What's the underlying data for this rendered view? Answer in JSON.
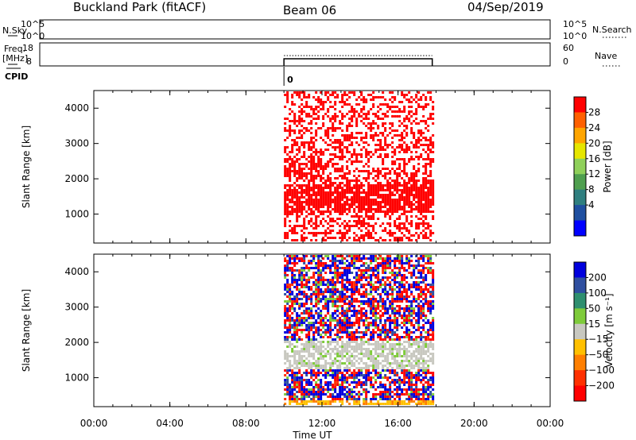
{
  "header": {
    "station": "Buckland Park (fitACF)",
    "beam": "Beam 06",
    "date": "04/Sep/2019"
  },
  "chart_data": [
    {
      "type": "line",
      "name": "noise-panel",
      "left_label": "N.Sky",
      "right_label": "N.Search",
      "left_ticks": [
        "10^5",
        "10^0"
      ],
      "right_ticks": [
        "10^5",
        "10^0"
      ]
    },
    {
      "type": "line",
      "name": "frequency-nave-panel",
      "left_label": "Freq.",
      "left_unit": "[MHz]",
      "right_label": "Nave",
      "left_ticks": [
        "18",
        "8"
      ],
      "right_ticks": [
        "60",
        "0"
      ],
      "x_range_hours": [
        10.0,
        17.8
      ]
    },
    {
      "type": "line",
      "name": "cpid-panel",
      "label": "CPID",
      "value_label": "0",
      "x_range_hours": [
        10.0,
        17.8
      ]
    },
    {
      "type": "heatmap",
      "name": "power-panel",
      "ylabel": "Slant Range [km]",
      "y_ticks": [
        1000,
        2000,
        3000,
        4000
      ],
      "ylim": [
        180,
        4500
      ],
      "xlim": [
        0,
        24
      ],
      "data_x_range": [
        10.0,
        17.8
      ],
      "colorbar": {
        "label": "Power [dB]",
        "ticks": [
          "28",
          "24",
          "20",
          "16",
          "12",
          "8",
          "4"
        ],
        "colors": [
          "#ff0000",
          "#ff6000",
          "#ffa500",
          "#e6e600",
          "#8fd05a",
          "#4f9f4f",
          "#2f7f7f",
          "#1f4fa0",
          "#0000ff"
        ]
      },
      "features": [
        {
          "desc": "dense band",
          "range_km": [
            1100,
            1900
          ],
          "hours": [
            10.0,
            17.8
          ]
        },
        {
          "desc": "upper echo band",
          "range_km": [
            2000,
            2700
          ],
          "hours": [
            10.0,
            12.0
          ]
        }
      ]
    },
    {
      "type": "heatmap",
      "name": "velocity-panel",
      "ylabel": "Slant Range [km]",
      "y_ticks": [
        1000,
        2000,
        3000,
        4000
      ],
      "ylim": [
        180,
        4500
      ],
      "xlim": [
        0,
        24
      ],
      "data_x_range": [
        10.0,
        17.8
      ],
      "colorbar": {
        "label": "Velocity [m s⁻¹]",
        "ticks": [
          "200",
          "100",
          "50",
          "15",
          "−15",
          "−50",
          "−100",
          "−200"
        ],
        "colors": [
          "#0000dd",
          "#2f4fa0",
          "#2f8f6f",
          "#7ecb3a",
          "#c8c8c0",
          "#ffc000",
          "#ff7f00",
          "#ff3000",
          "#ff0000"
        ]
      },
      "features": [
        {
          "desc": "low-velocity grey band",
          "range_km": [
            1300,
            2100
          ],
          "hours": [
            10.0,
            17.8
          ]
        }
      ]
    }
  ],
  "x_axis": {
    "xlabel": "Time UT",
    "tick_labels": [
      "00:00",
      "04:00",
      "08:00",
      "12:00",
      "16:00",
      "20:00",
      "00:00"
    ],
    "tick_hours": [
      0,
      4,
      8,
      12,
      16,
      20,
      24
    ]
  }
}
